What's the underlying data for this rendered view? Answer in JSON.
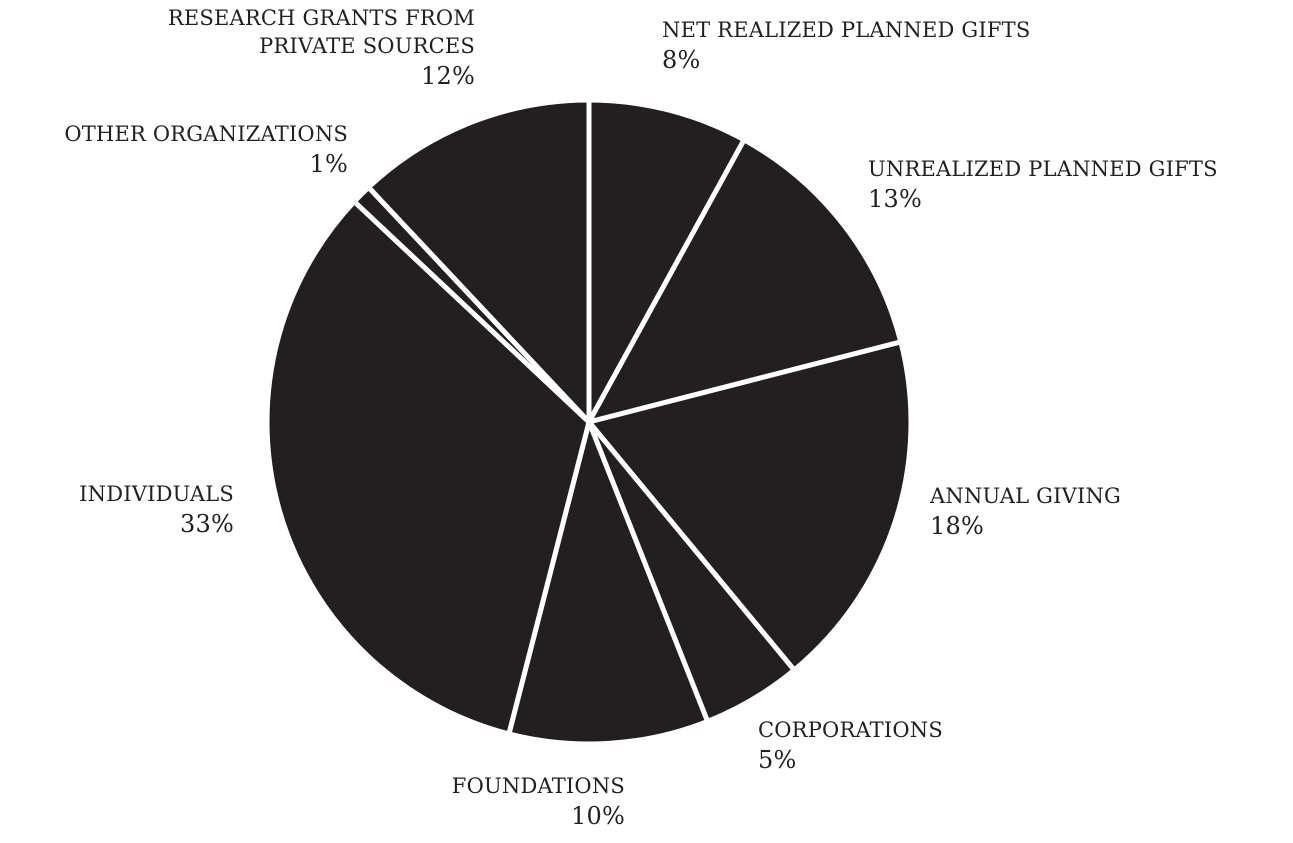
{
  "chart_data": {
    "type": "pie",
    "slice_color": "#231f20",
    "separator_color": "#ffffff",
    "slices": [
      {
        "label": "NET REALIZED PLANNED GIFTS",
        "value": 8,
        "value_label": "8%"
      },
      {
        "label": "UNREALIZED PLANNED GIFTS",
        "value": 13,
        "value_label": "13%"
      },
      {
        "label": "ANNUAL GIVING",
        "value": 18,
        "value_label": "18%"
      },
      {
        "label": "CORPORATIONS",
        "value": 5,
        "value_label": "5%"
      },
      {
        "label": "FOUNDATIONS",
        "value": 10,
        "value_label": "10%"
      },
      {
        "label": "INDIVIDUALS",
        "value": 33,
        "value_label": "33%"
      },
      {
        "label": "OTHER ORGANIZATIONS",
        "value": 1,
        "value_label": "1%"
      },
      {
        "label": "RESEARCH GRANTS FROM PRIVATE SOURCES",
        "label_lines": [
          "RESEARCH GRANTS FROM",
          "PRIVATE SOURCES"
        ],
        "value": 12,
        "value_label": "12%"
      }
    ]
  }
}
